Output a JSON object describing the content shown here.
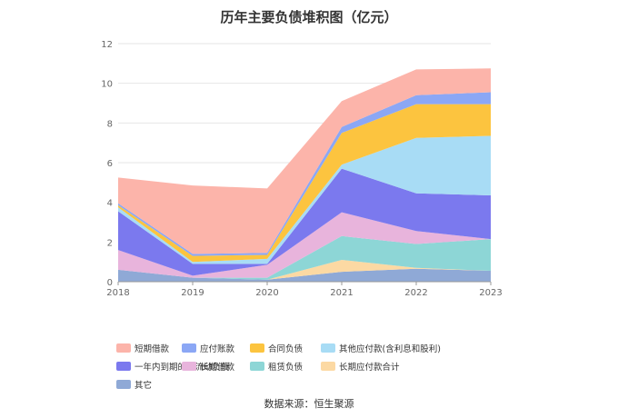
{
  "chart_data": {
    "type": "area",
    "title": "历年主要负债堆积图（亿元）",
    "x": [
      "2018",
      "2019",
      "2020",
      "2021",
      "2022",
      "2023"
    ],
    "ylim": [
      0,
      12
    ],
    "yticks": [
      "0",
      "2",
      "4",
      "6",
      "8",
      "10",
      "12"
    ],
    "stacked": true,
    "grid": true,
    "legend_position": "bottom",
    "series": [
      {
        "name": "其它",
        "color": "#8fa9d6",
        "values": [
          0.6,
          0.2,
          0.1,
          0.5,
          0.65,
          0.55
        ]
      },
      {
        "name": "长期应付款合计",
        "color": "#fcd9a3",
        "values": [
          0.0,
          0.0,
          0.0,
          0.6,
          0.05,
          0.0
        ]
      },
      {
        "name": "租赁负债",
        "color": "#8dd6d6",
        "values": [
          0.0,
          0.0,
          0.1,
          1.2,
          1.2,
          1.6
        ]
      },
      {
        "name": "长期借款",
        "color": "#e8b4dc",
        "values": [
          1.0,
          0.1,
          0.65,
          1.2,
          0.65,
          0.0
        ]
      },
      {
        "name": "一年内到期的非流动负债",
        "color": "#7b79ee",
        "values": [
          1.95,
          0.6,
          0.05,
          2.2,
          1.9,
          2.2
        ]
      },
      {
        "name": "其他应付款(含利息和股利)",
        "color": "#a8dcf5",
        "values": [
          0.2,
          0.1,
          0.25,
          0.2,
          2.8,
          3.0
        ]
      },
      {
        "name": "合同负债",
        "color": "#fcc43f",
        "values": [
          0.1,
          0.3,
          0.2,
          1.6,
          1.7,
          1.6
        ]
      },
      {
        "name": "应付账款",
        "color": "#8ba7f5",
        "values": [
          0.1,
          0.1,
          0.1,
          0.3,
          0.45,
          0.6
        ]
      },
      {
        "name": "短期借款",
        "color": "#fcb4aa",
        "values": [
          1.3,
          3.45,
          3.25,
          1.3,
          1.3,
          1.2
        ]
      }
    ]
  },
  "legend_order": [
    "短期借款",
    "应付账款",
    "合同负债",
    "其他应付款(含利息和股利)",
    "一年内到期的非流动负债",
    "长期借款",
    "租赁负债",
    "长期应付款合计",
    "其它"
  ],
  "source": "数据来源：恒生聚源"
}
